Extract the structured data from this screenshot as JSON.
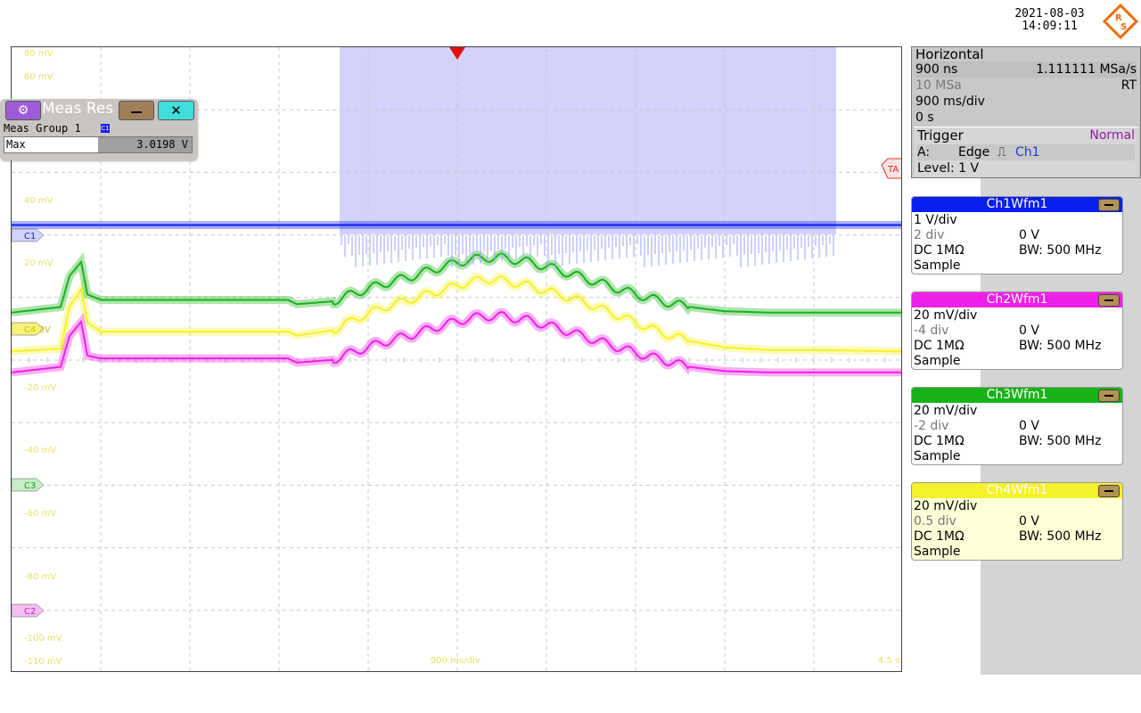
{
  "header": {
    "date": "2021-08-03",
    "time": "14:09:11",
    "logo_text": "R&S"
  },
  "measurement": {
    "title": "Meas Res",
    "group": "Meas Group 1",
    "source_tag": "C1",
    "rows": [
      {
        "name": "Max",
        "value": "3.0198 V"
      }
    ]
  },
  "horizontal": {
    "title": "Horizontal",
    "resolution": "900 ns",
    "sample_rate": "1.111111 MSa/s",
    "record_length": "10 MSa",
    "mode": "RT",
    "time_scale": "900 ms/div",
    "position": "0 s"
  },
  "trigger": {
    "title": "Trigger",
    "mode": "Normal",
    "source_prefix": "A:",
    "type": "Edge",
    "source": "Ch1",
    "level": "Level: 1 V"
  },
  "channels": [
    {
      "title": "Ch1Wfm1",
      "color": "#0b1ef0",
      "scale": "1 V/div",
      "offset": "2 div",
      "offset_value": "0 V",
      "coupling": "DC 1MΩ",
      "bandwidth": "BW: 500 MHz",
      "acq": "Sample"
    },
    {
      "title": "Ch2Wfm1",
      "color": "#f020e8",
      "scale": "20 mV/div",
      "offset": "-4 div",
      "offset_value": "0 V",
      "coupling": "DC 1MΩ",
      "bandwidth": "BW: 500 MHz",
      "acq": "Sample"
    },
    {
      "title": "Ch3Wfm1",
      "color": "#19b219",
      "scale": "20 mV/div",
      "offset": "-2 div",
      "offset_value": "0 V",
      "coupling": "DC 1MΩ",
      "bandwidth": "BW: 500 MHz",
      "acq": "Sample"
    },
    {
      "title": "Ch4Wfm1",
      "color": "#f4f02a",
      "scale": "20 mV/div",
      "offset": "0.5 div",
      "offset_value": "0 V",
      "coupling": "DC 1MΩ",
      "bandwidth": "BW: 500 MHz",
      "acq": "Sample"
    }
  ],
  "chart_data": {
    "type": "line",
    "title": "",
    "xlabel": "",
    "ylabel": "",
    "grid": true,
    "x_divisions": 10,
    "y_divisions": 10,
    "y_tick_labels": [
      "80 mV",
      "60 mV",
      "40 mV",
      "20 mV",
      "-20 mV",
      "-40 mV",
      "-60 mV",
      "-80 mV",
      "-100 mV",
      "-110 mV"
    ],
    "x_tick_center": "900 ms/div",
    "x_tick_right": "4.5 s",
    "marker_labels": {
      "trigger_level": "TA",
      "ch1": "C1",
      "ch2": "C2",
      "ch3": "C3",
      "ch4": "C4 2V"
    },
    "gate_x_div": [
      3.68,
      9.25
    ],
    "series": [
      {
        "name": "Ch1Wfm1",
        "color": "#0b1ef0",
        "x_div": [
          0,
          10
        ],
        "y_v": [
          3.02,
          3.02
        ]
      },
      {
        "name": "Ch4Wfm1",
        "color": "#f4f02a",
        "x_div": [
          0.0,
          0.55,
          0.65,
          0.78,
          0.85,
          1.0,
          2.0,
          3.1,
          3.2,
          3.6,
          3.9,
          4.2,
          4.5,
          4.8,
          5.1,
          5.3,
          5.5,
          5.8,
          6.1,
          6.4,
          6.7,
          7.0,
          7.3,
          7.6,
          8.0,
          8.5,
          9.0,
          10.0
        ],
        "y_mv": [
          -2,
          0,
          32,
          45,
          20,
          13,
          13,
          13,
          10,
          14,
          24,
          32,
          38,
          44,
          50,
          53,
          52,
          48,
          42,
          36,
          28,
          20,
          12,
          6,
          1,
          -1,
          -1,
          -2
        ]
      },
      {
        "name": "Ch3Wfm1",
        "color": "#19b219",
        "x_div": [
          0.0,
          0.55,
          0.65,
          0.78,
          0.85,
          1.0,
          2.0,
          3.1,
          3.2,
          3.6,
          3.9,
          4.2,
          4.5,
          4.8,
          5.1,
          5.3,
          5.5,
          5.8,
          6.1,
          6.4,
          6.7,
          7.0,
          7.3,
          7.6,
          8.0,
          8.5,
          9.0,
          10.0
        ],
        "y_mv": [
          -1,
          3,
          25,
          35,
          12,
          8,
          8,
          8,
          5,
          7,
          14,
          20,
          25,
          31,
          36,
          38,
          38,
          35,
          30,
          24,
          18,
          12,
          7,
          3,
          0,
          -1,
          -1,
          -1
        ]
      },
      {
        "name": "Ch2Wfm1",
        "color": "#f020e8",
        "x_div": [
          0.0,
          0.55,
          0.65,
          0.78,
          0.85,
          1.0,
          2.0,
          3.1,
          3.2,
          3.6,
          3.9,
          4.2,
          4.5,
          4.8,
          5.1,
          5.3,
          5.5,
          5.8,
          6.1,
          6.4,
          6.7,
          7.0,
          7.3,
          7.6,
          8.0,
          8.5,
          9.0,
          10.0
        ],
        "y_mv": [
          -1,
          3,
          25,
          35,
          11,
          9,
          9,
          9,
          6,
          8,
          15,
          21,
          26,
          32,
          37,
          39,
          39,
          36,
          31,
          25,
          19,
          13,
          8,
          3,
          0,
          -1,
          -1,
          -1
        ]
      }
    ]
  }
}
